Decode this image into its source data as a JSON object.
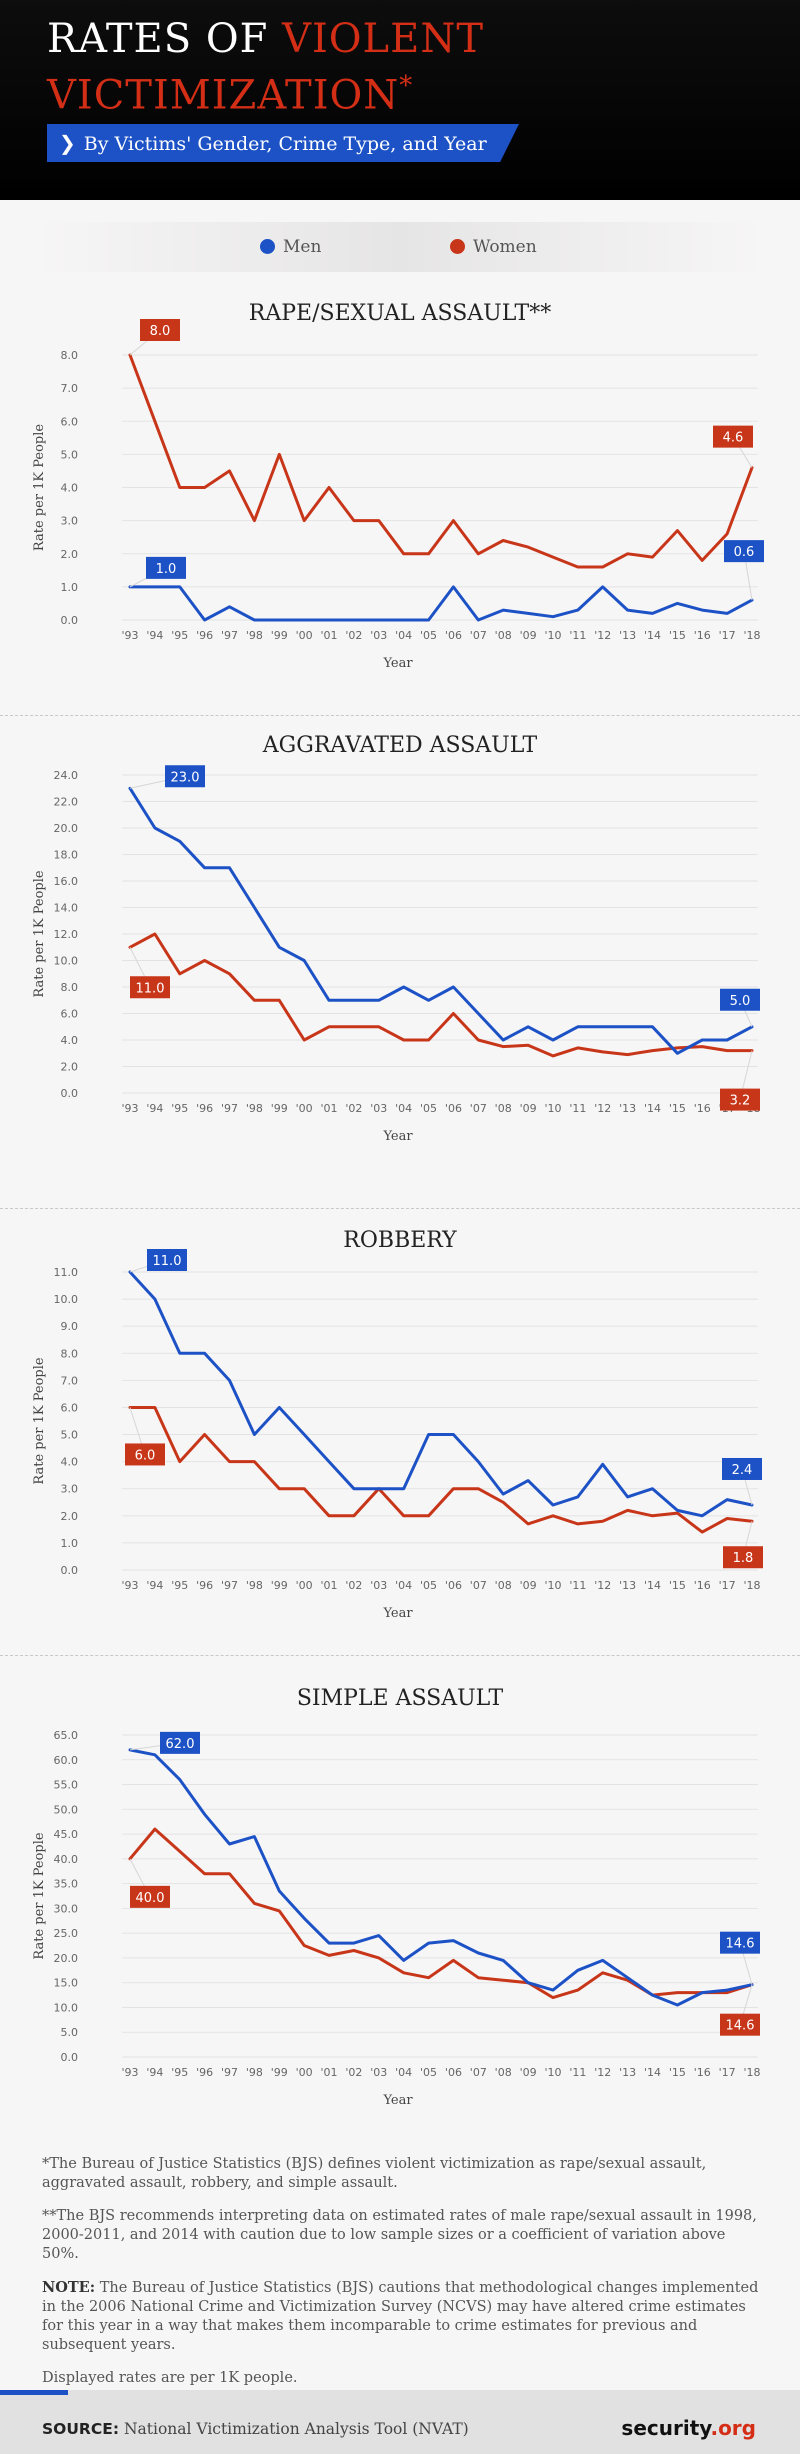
{
  "header": {
    "title_line1_a": "RATES OF",
    "title_line1_b": "VIOLENT",
    "title_line2": "VICTIMIZATION",
    "title_mark": "*",
    "subtitle": "By Victims' Gender, Crime Type, and Year"
  },
  "legend": {
    "men": {
      "label": "Men",
      "color": "#1d52c6"
    },
    "women": {
      "label": "Women",
      "color": "#c8361a"
    }
  },
  "chart_data": [
    {
      "type": "line",
      "title": "RAPE/SEXUAL ASSAULT**",
      "xlabel": "Year",
      "ylabel": "Rate per 1K People",
      "ylim": [
        0,
        8
      ],
      "yticks": [
        "0.0",
        "1.0",
        "2.0",
        "3.0",
        "4.0",
        "5.0",
        "6.0",
        "7.0",
        "8.0"
      ],
      "categories": [
        "'93",
        "'94",
        "'95",
        "'96",
        "'97",
        "'98",
        "'99",
        "'00",
        "'01",
        "'02",
        "'03",
        "'04",
        "'05",
        "'06",
        "'07",
        "'08",
        "'09",
        "'10",
        "'11",
        "'12",
        "'13",
        "'14",
        "'15",
        "'16",
        "'17",
        "'18"
      ],
      "series": [
        {
          "name": "Men",
          "color": "#1d52c6",
          "values": [
            1.0,
            1.0,
            1.0,
            0.0,
            0.4,
            0.0,
            0.0,
            0.0,
            0.0,
            0.0,
            0.0,
            0.0,
            0.0,
            1.0,
            0.0,
            0.3,
            0.2,
            0.1,
            0.3,
            1.0,
            0.3,
            0.2,
            0.5,
            0.3,
            0.2,
            0.6
          ]
        },
        {
          "name": "Women",
          "color": "#c8361a",
          "values": [
            8.0,
            6.0,
            4.0,
            4.0,
            4.5,
            3.0,
            5.0,
            3.0,
            4.0,
            3.0,
            3.0,
            2.0,
            2.0,
            3.0,
            2.0,
            2.4,
            2.2,
            1.9,
            1.6,
            1.6,
            2.0,
            1.9,
            2.7,
            1.8,
            2.6,
            4.6
          ]
        }
      ],
      "annotations": [
        {
          "series": "Women",
          "index": 0,
          "label": "8.0"
        },
        {
          "series": "Men",
          "index": 0,
          "label": "1.0"
        },
        {
          "series": "Women",
          "index": 25,
          "label": "4.6"
        },
        {
          "series": "Men",
          "index": 25,
          "label": "0.6"
        }
      ]
    },
    {
      "type": "line",
      "title": "AGGRAVATED ASSAULT",
      "xlabel": "Year",
      "ylabel": "Rate per 1K People",
      "ylim": [
        0,
        24
      ],
      "yticks": [
        "0.0",
        "2.0",
        "4.0",
        "6.0",
        "8.0",
        "10.0",
        "12.0",
        "14.0",
        "16.0",
        "18.0",
        "20.0",
        "22.0",
        "24.0"
      ],
      "categories": [
        "'93",
        "'94",
        "'95",
        "'96",
        "'97",
        "'98",
        "'99",
        "'00",
        "'01",
        "'02",
        "'03",
        "'04",
        "'05",
        "'06",
        "'07",
        "'08",
        "'09",
        "'10",
        "'11",
        "'12",
        "'13",
        "'14",
        "'15",
        "'16",
        "'17",
        "'18"
      ],
      "series": [
        {
          "name": "Men",
          "color": "#1d52c6",
          "values": [
            23.0,
            20.0,
            19.0,
            17.0,
            17.0,
            14.0,
            11.0,
            10.0,
            7.0,
            7.0,
            7.0,
            8.0,
            7.0,
            8.0,
            6.0,
            4.0,
            5.0,
            4.0,
            5.0,
            5.0,
            5.0,
            5.0,
            3.0,
            4.0,
            4.0,
            5.0
          ]
        },
        {
          "name": "Women",
          "color": "#c8361a",
          "values": [
            11.0,
            12.0,
            9.0,
            10.0,
            9.0,
            7.0,
            7.0,
            4.0,
            5.0,
            5.0,
            5.0,
            4.0,
            4.0,
            6.0,
            4.0,
            3.5,
            3.6,
            2.8,
            3.4,
            3.1,
            2.9,
            3.2,
            3.4,
            3.5,
            3.2,
            3.2
          ]
        }
      ],
      "annotations": [
        {
          "series": "Men",
          "index": 0,
          "label": "23.0"
        },
        {
          "series": "Women",
          "index": 0,
          "label": "11.0"
        },
        {
          "series": "Men",
          "index": 25,
          "label": "5.0"
        },
        {
          "series": "Women",
          "index": 25,
          "label": "3.2"
        }
      ]
    },
    {
      "type": "line",
      "title": "ROBBERY",
      "xlabel": "Year",
      "ylabel": "Rate per 1K People",
      "ylim": [
        0,
        11
      ],
      "yticks": [
        "0.0",
        "1.0",
        "2.0",
        "3.0",
        "4.0",
        "5.0",
        "6.0",
        "7.0",
        "8.0",
        "9.0",
        "10.0",
        "11.0"
      ],
      "categories": [
        "'93",
        "'94",
        "'95",
        "'96",
        "'97",
        "'98",
        "'99",
        "'00",
        "'01",
        "'02",
        "'03",
        "'04",
        "'05",
        "'06",
        "'07",
        "'08",
        "'09",
        "'10",
        "'11",
        "'12",
        "'13",
        "'14",
        "'15",
        "'16",
        "'17",
        "'18"
      ],
      "series": [
        {
          "name": "Men",
          "color": "#1d52c6",
          "values": [
            11.0,
            10.0,
            8.0,
            8.0,
            7.0,
            5.0,
            6.0,
            5.0,
            4.0,
            3.0,
            3.0,
            3.0,
            5.0,
            5.0,
            4.0,
            2.8,
            3.3,
            2.4,
            2.7,
            3.9,
            2.7,
            3.0,
            2.2,
            2.0,
            2.6,
            2.4
          ]
        },
        {
          "name": "Women",
          "color": "#c8361a",
          "values": [
            6.0,
            6.0,
            4.0,
            5.0,
            4.0,
            4.0,
            3.0,
            3.0,
            2.0,
            2.0,
            3.0,
            2.0,
            2.0,
            3.0,
            3.0,
            2.5,
            1.7,
            2.0,
            1.7,
            1.8,
            2.2,
            2.0,
            2.1,
            1.4,
            1.9,
            1.8
          ]
        }
      ],
      "annotations": [
        {
          "series": "Men",
          "index": 0,
          "label": "11.0"
        },
        {
          "series": "Women",
          "index": 0,
          "label": "6.0"
        },
        {
          "series": "Men",
          "index": 25,
          "label": "2.4"
        },
        {
          "series": "Women",
          "index": 25,
          "label": "1.8"
        }
      ]
    },
    {
      "type": "line",
      "title": "SIMPLE ASSAULT",
      "xlabel": "Year",
      "ylabel": "Rate per 1K People",
      "ylim": [
        0,
        65
      ],
      "yticks": [
        "0.0",
        "5.0",
        "10.0",
        "15.0",
        "20.0",
        "25.0",
        "30.0",
        "35.0",
        "40.0",
        "45.0",
        "50.0",
        "55.0",
        "60.0",
        "65.0"
      ],
      "categories": [
        "'93",
        "'94",
        "'95",
        "'96",
        "'97",
        "'98",
        "'99",
        "'00",
        "'01",
        "'02",
        "'03",
        "'04",
        "'05",
        "'06",
        "'07",
        "'08",
        "'09",
        "'10",
        "'11",
        "'12",
        "'13",
        "'14",
        "'15",
        "'16",
        "'17",
        "'18"
      ],
      "series": [
        {
          "name": "Men",
          "color": "#1d52c6",
          "values": [
            62.0,
            61.0,
            56.0,
            49.0,
            43.0,
            44.5,
            33.5,
            28.0,
            23.0,
            23.0,
            24.5,
            19.5,
            23.0,
            23.5,
            21.0,
            19.5,
            15.0,
            13.5,
            17.5,
            19.5,
            16.0,
            12.5,
            10.5,
            13.0,
            13.5,
            14.6
          ]
        },
        {
          "name": "Women",
          "color": "#c8361a",
          "values": [
            40.0,
            46.0,
            41.5,
            37.0,
            37.0,
            31.0,
            29.5,
            22.5,
            20.5,
            21.5,
            20.0,
            17.0,
            16.0,
            19.5,
            16.0,
            15.5,
            15.0,
            12.0,
            13.5,
            17.0,
            15.5,
            12.5,
            13.0,
            13.0,
            13.0,
            14.6
          ]
        }
      ],
      "annotations": [
        {
          "series": "Men",
          "index": 0,
          "label": "62.0"
        },
        {
          "series": "Women",
          "index": 0,
          "label": "40.0"
        },
        {
          "series": "Men",
          "index": 25,
          "label": "14.6"
        },
        {
          "series": "Women",
          "index": 25,
          "label": "14.6"
        }
      ]
    }
  ],
  "notes": {
    "note1": "*The Bureau of Justice Statistics (BJS) defines violent victimization as rape/sexual assault, aggravated assault, robbery, and simple assault.",
    "note2": "**The BJS recommends interpreting data on estimated rates of male rape/sexual assault in 1998, 2000-2011, and 2014 with caution due to low sample sizes or a coefficient of variation above 50%.",
    "note3_label": "NOTE:",
    "note3": "The Bureau of Justice Statistics (BJS) cautions that methodological changes implemented in the 2006 National Crime and Victimization Survey (NCVS) may have altered crime estimates for this year in a way that makes them incomparable to crime estimates for previous and subsequent years.",
    "note4": "Displayed rates are per 1K people."
  },
  "footer": {
    "source_label": "SOURCE:",
    "source_text": "National Victimization Analysis Tool (NVAT)",
    "brand_name": "security",
    "brand_tld": ".org"
  }
}
